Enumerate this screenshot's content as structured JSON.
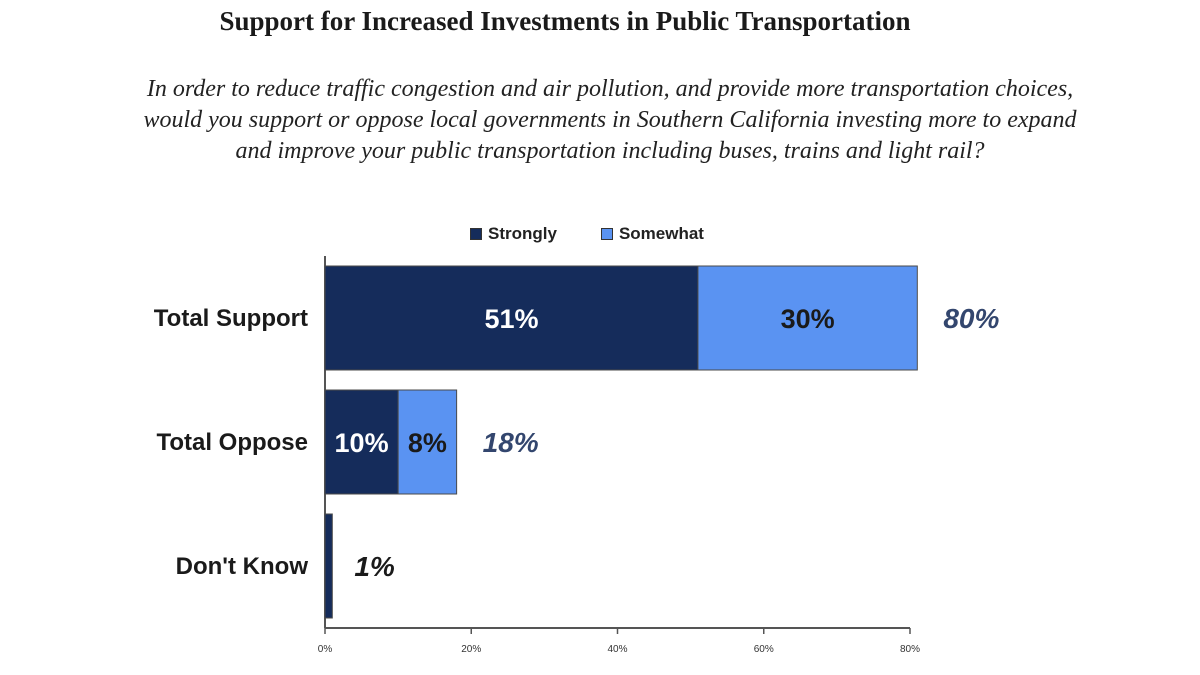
{
  "chart_data": {
    "type": "bar",
    "orientation": "horizontal",
    "stacked": true,
    "title": "Support for Increased Investments in Public Transportation",
    "subtitle_lines": [
      "In order to reduce traffic congestion and air pollution, and provide more transportation choices,",
      "would you support or oppose local governments in Southern California investing more to expand",
      "and improve your public transportation including buses, trains and light rail?"
    ],
    "categories": [
      "Total Support",
      "Total Oppose",
      "Don't Know"
    ],
    "series": [
      {
        "name": "Strongly",
        "color": "#152c5b",
        "values": [
          51,
          10,
          1
        ],
        "labels": [
          "51%",
          "10%",
          ""
        ]
      },
      {
        "name": "Somewhat",
        "color": "#5a93f2",
        "values": [
          30,
          8,
          0
        ],
        "labels": [
          "30%",
          "8%",
          ""
        ]
      }
    ],
    "totals": [
      {
        "value": 80,
        "label": "80%"
      },
      {
        "value": 18,
        "label": "18%"
      },
      {
        "value": 1,
        "label": "1%"
      }
    ],
    "xlim": [
      0,
      80
    ],
    "ticks": [
      0,
      20,
      40,
      60,
      80
    ],
    "tick_labels": [
      "0%",
      "20%",
      "40%",
      "60%",
      "80%"
    ],
    "legend_position": "top",
    "grid": false
  }
}
